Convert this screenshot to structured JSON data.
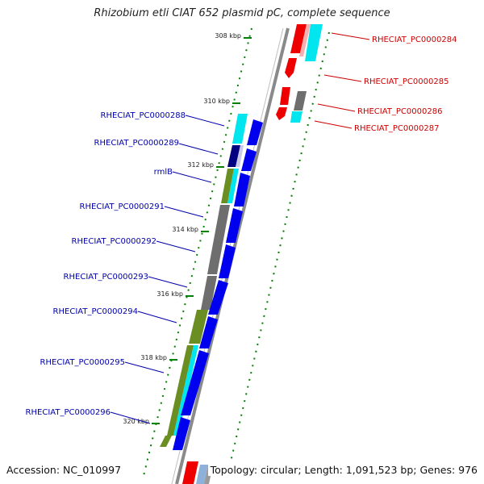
{
  "title": "Rhizobium etli CIAT 652 plasmid pC, complete sequence",
  "accession": "Accession: NC_010997",
  "summary": "Topology: circular; Length: 1,091,523 bp; Genes: 976",
  "colors": {
    "forward_cds": "#0000ee",
    "reverse_cds": "#ee0000",
    "rna": "#00e5ee",
    "olive": "#6b8e23",
    "gray": "#6e6e6e",
    "navy": "#000080",
    "backbone": "#808080",
    "tick": "#008000",
    "label_left": "#0000aa",
    "label_right": "#cc0000"
  },
  "ticks": [
    "308 kbp",
    "310 kbp",
    "312 kbp",
    "314 kbp",
    "316 kbp",
    "318 kbp",
    "320 kbp"
  ],
  "genes_left": [
    {
      "label": "RHECIAT_PC0000288"
    },
    {
      "label": "RHECIAT_PC0000289"
    },
    {
      "label": "rmlB"
    },
    {
      "label": "RHECIAT_PC0000291"
    },
    {
      "label": "RHECIAT_PC0000292"
    },
    {
      "label": "RHECIAT_PC0000293"
    },
    {
      "label": "RHECIAT_PC0000294"
    },
    {
      "label": "RHECIAT_PC0000295"
    },
    {
      "label": "RHECIAT_PC0000296"
    }
  ],
  "genes_right": [
    {
      "label": "RHECIAT_PC0000284"
    },
    {
      "label": "RHECIAT_PC0000285"
    },
    {
      "label": "RHECIAT_PC0000286"
    },
    {
      "label": "RHECIAT_PC0000287"
    }
  ]
}
